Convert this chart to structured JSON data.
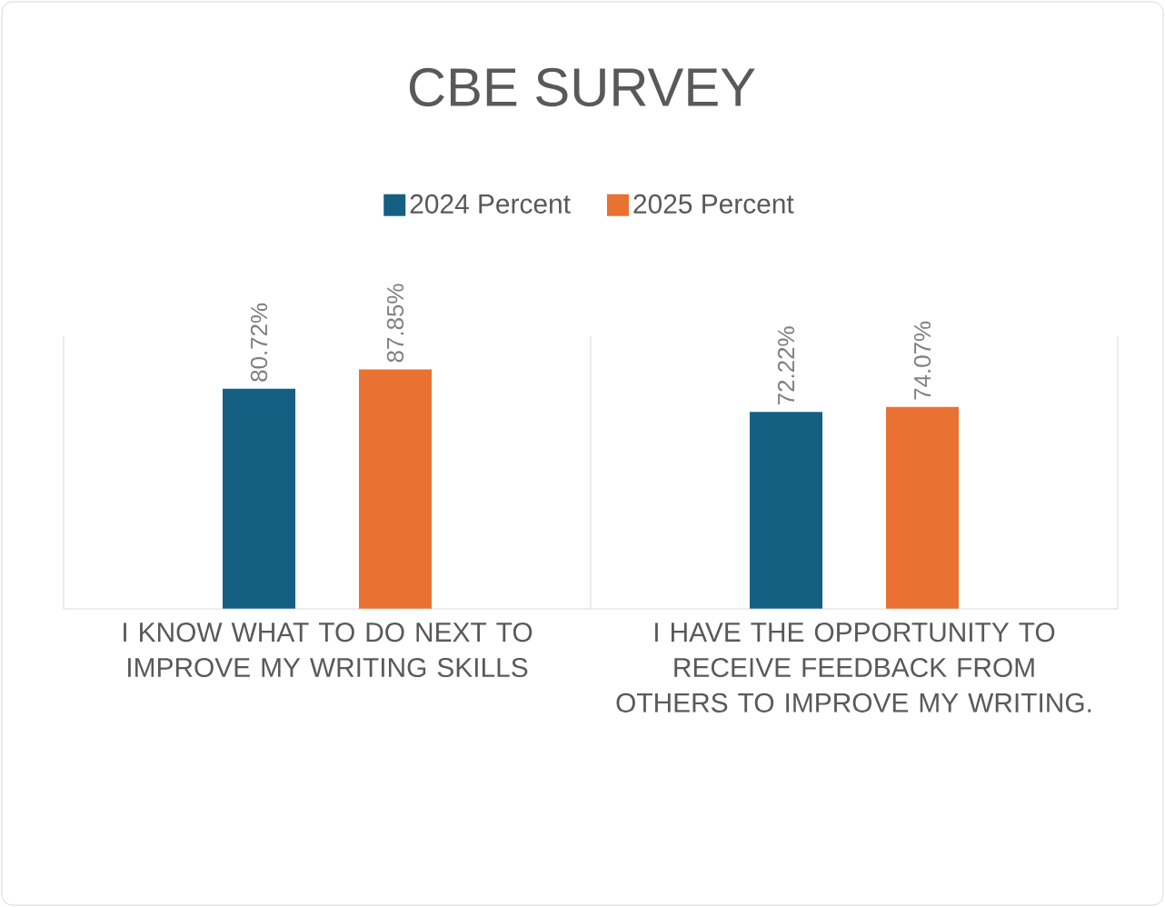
{
  "chart_data": {
    "type": "bar",
    "title": "CBE SURVEY",
    "categories": [
      "I KNOW WHAT TO DO NEXT TO IMPROVE MY WRITING SKILLS",
      "I HAVE THE OPPORTUNITY TO RECEIVE FEEDBACK FROM OTHERS TO IMPROVE MY WRITING."
    ],
    "series": [
      {
        "name": "2024 Percent",
        "color": "#156082",
        "values": [
          80.72,
          72.22
        ],
        "value_labels": [
          "80.72%",
          "72.22%"
        ]
      },
      {
        "name": "2025 Percent",
        "color": "#e97132",
        "values": [
          87.85,
          74.07
        ],
        "value_labels": [
          "87.85%",
          "74.07%"
        ]
      }
    ],
    "ylim": [
      0,
      100
    ],
    "tick_labels": "x",
    "legend": "top"
  }
}
